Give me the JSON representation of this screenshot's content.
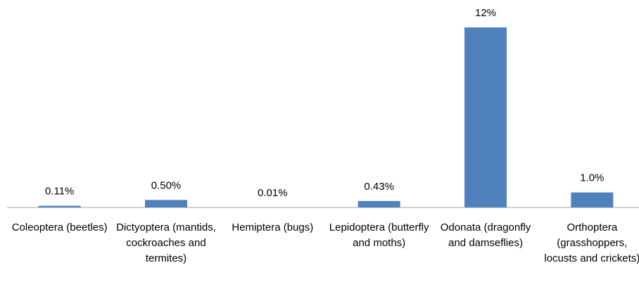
{
  "chart_data": {
    "type": "bar",
    "categories": [
      "Coleoptera (beetles)",
      "Dictyoptera (mantids, cockroaches and termites)",
      "Hemiptera (bugs)",
      "Lepidoptera (butterfly and moths)",
      "Odonata (dragonfly and damseflies)",
      "Orthoptera (grasshoppers, locusts and crickets)"
    ],
    "values": [
      0.11,
      0.5,
      0.01,
      0.43,
      12,
      1.0
    ],
    "value_labels": [
      "0.11%",
      "0.50%",
      "0.01%",
      "0.43%",
      "12%",
      "1.0%"
    ],
    "color": "#4f81bd"
  }
}
